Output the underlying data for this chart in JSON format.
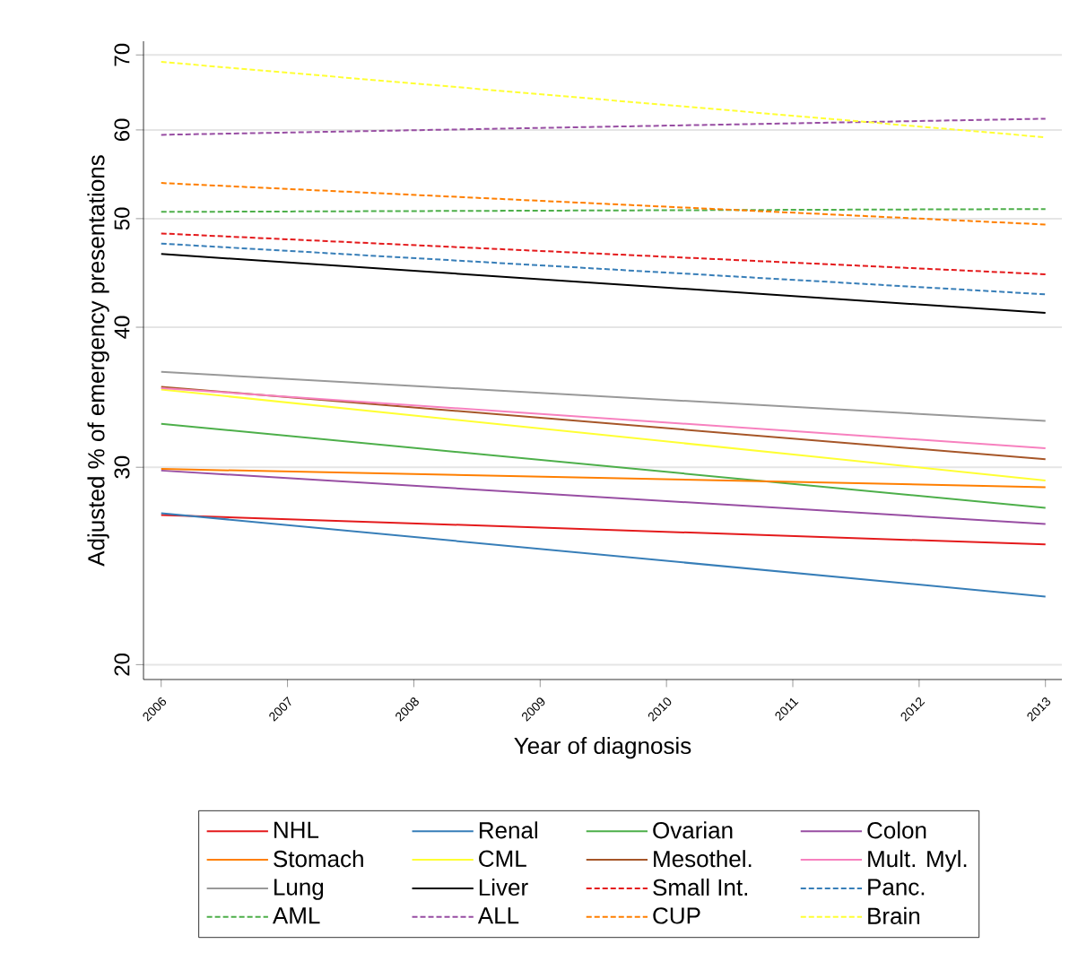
{
  "chart_data": {
    "type": "line",
    "xlabel": "Year of diagnosis",
    "ylabel": "Adjusted % of emergency presentations",
    "x": [
      2006,
      2013
    ],
    "xlim": [
      2005.86,
      2013.13
    ],
    "xticks": [
      2006,
      2007,
      2008,
      2009,
      2010,
      2011,
      2012,
      2013
    ],
    "ylim": [
      19.4,
      72
    ],
    "yticks": [
      20,
      30,
      40,
      50,
      60,
      70
    ],
    "log": "y",
    "grid": "y",
    "legend": "bottom",
    "line_style": "solid",
    "series": [
      {
        "name": "NHL",
        "color": "#e41a1c",
        "values": [
          27.2,
          25.6
        ]
      },
      {
        "name": "Renal",
        "color": "#377eb8",
        "values": [
          27.3,
          23.0
        ]
      },
      {
        "name": "Ovarian",
        "color": "#4daf4a",
        "values": [
          32.8,
          27.6
        ]
      },
      {
        "name": "Colon",
        "color": "#984ea3",
        "values": [
          29.8,
          26.7
        ]
      },
      {
        "name": "Stomach",
        "color": "#ff7f00",
        "values": [
          29.9,
          28.8
        ]
      },
      {
        "name": "CML",
        "color": "#ffff33",
        "values": [
          35.2,
          29.2
        ]
      },
      {
        "name": "Mesothel.",
        "color": "#a65628",
        "values": [
          35.4,
          30.5
        ]
      },
      {
        "name": "Mult. Myl.",
        "color": "#f781bf",
        "values": [
          35.3,
          31.2
        ]
      },
      {
        "name": "Lung",
        "color": "#999999",
        "values": [
          36.5,
          33.0
        ]
      },
      {
        "name": "Liver",
        "color": "#000000",
        "values": [
          46.5,
          41.2
        ]
      },
      {
        "name": "Small Int.",
        "color": "#e41a1c",
        "line_style": "dashed",
        "values": [
          48.5,
          44.6
        ]
      },
      {
        "name": "Panc.",
        "color": "#377eb8",
        "line_style": "dashed",
        "values": [
          47.5,
          42.8
        ]
      },
      {
        "name": "AML",
        "color": "#4daf4a",
        "line_style": "dashed",
        "values": [
          50.7,
          51.0
        ]
      },
      {
        "name": "ALL",
        "color": "#984ea3",
        "line_style": "dashed",
        "values": [
          59.4,
          61.4
        ]
      },
      {
        "name": "CUP",
        "color": "#ff7f00",
        "line_style": "dashed",
        "values": [
          53.8,
          49.4
        ]
      },
      {
        "name": "Brain",
        "color": "#ffff33",
        "line_style": "dashed",
        "values": [
          69.0,
          59.1
        ]
      }
    ]
  }
}
